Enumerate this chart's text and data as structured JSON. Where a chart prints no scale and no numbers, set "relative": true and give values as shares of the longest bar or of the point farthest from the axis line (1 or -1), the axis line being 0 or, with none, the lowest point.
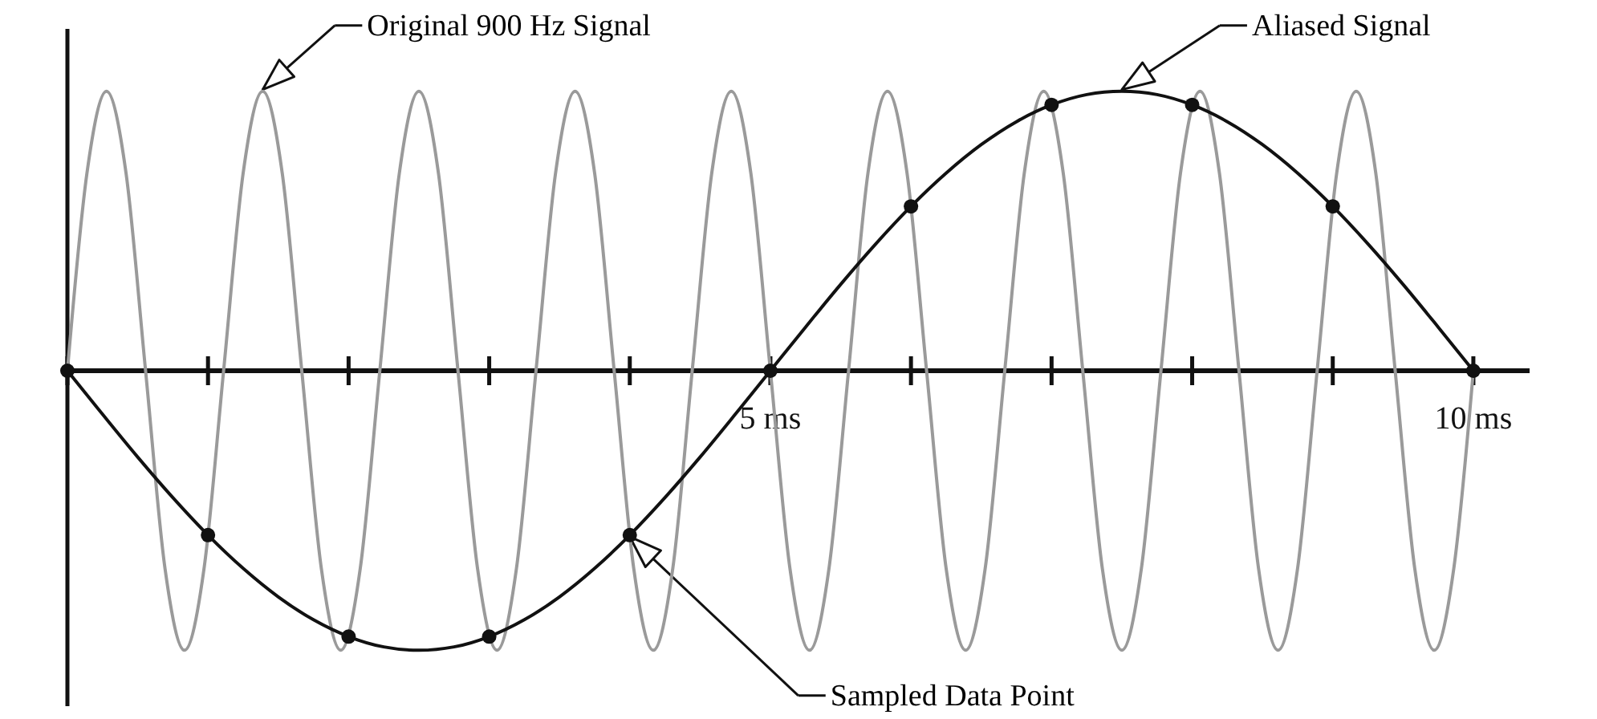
{
  "chart_data": {
    "type": "line",
    "relative": true,
    "xlim": [
      0,
      10.4
    ],
    "xticks": [
      {
        "value": 0,
        "label": null
      },
      {
        "value": 1,
        "label": null
      },
      {
        "value": 2,
        "label": null
      },
      {
        "value": 3,
        "label": null
      },
      {
        "value": 4,
        "label": null
      },
      {
        "value": 5,
        "label": "5 ms"
      },
      {
        "value": 6,
        "label": null
      },
      {
        "value": 7,
        "label": null
      },
      {
        "value": 8,
        "label": null
      },
      {
        "value": 9,
        "label": null
      },
      {
        "value": 10,
        "label": "10 ms"
      }
    ],
    "tick_labels": "x",
    "series": [
      {
        "color": "#9a9a9a",
        "x": [
          0,
          0.139,
          0.278,
          0.417,
          0.556,
          0.694,
          0.833,
          0.972,
          1.111,
          1.25,
          1.389,
          1.528,
          1.667,
          1.806,
          1.944,
          2.083,
          2.222,
          2.361,
          2.5,
          2.639,
          2.778,
          2.917,
          3.056,
          3.194,
          3.333,
          3.472,
          3.611,
          3.75,
          3.889,
          4.028,
          4.167,
          4.306,
          4.444,
          4.583,
          4.722,
          4.861,
          5,
          5.139,
          5.278,
          5.417,
          5.556,
          5.694,
          5.833,
          5.972,
          6.111,
          6.25,
          6.389,
          6.528,
          6.667,
          6.806,
          6.944,
          7.083,
          7.222,
          7.361,
          7.5,
          7.639,
          7.778,
          7.917,
          8.056,
          8.194,
          8.333,
          8.472,
          8.611,
          8.75,
          8.889,
          9.028,
          9.167,
          9.306,
          9.444,
          9.583,
          9.722,
          9.861,
          10
        ],
        "values": [
          0,
          0.707,
          1,
          0.707,
          0,
          -0.707,
          -1,
          -0.707,
          0,
          0.707,
          1,
          0.707,
          0,
          -0.707,
          -1,
          -0.707,
          0,
          0.707,
          1,
          0.707,
          0,
          -0.707,
          -1,
          -0.707,
          0,
          0.707,
          1,
          0.707,
          0,
          -0.707,
          -1,
          -0.707,
          0,
          0.707,
          1,
          0.707,
          0,
          -0.707,
          -1,
          -0.707,
          0,
          0.707,
          1,
          0.707,
          0,
          -0.707,
          -1,
          -0.707,
          0,
          0.707,
          1,
          0.707,
          0,
          -0.707,
          -1,
          -0.707,
          0,
          0.707,
          1,
          0.707,
          0,
          -0.707,
          -1,
          -0.707,
          0,
          0.707,
          1,
          0.707,
          0,
          -0.707,
          -1,
          -0.707,
          0
        ]
      },
      {
        "color": "#111111",
        "x": [
          0,
          0.25,
          0.5,
          0.75,
          1,
          1.25,
          1.5,
          1.75,
          2,
          2.25,
          2.5,
          2.75,
          3,
          3.25,
          3.5,
          3.75,
          4,
          4.25,
          4.5,
          4.75,
          5,
          5.25,
          5.5,
          5.75,
          6,
          6.25,
          6.5,
          6.75,
          7,
          7.25,
          7.5,
          7.75,
          8,
          8.25,
          8.5,
          8.75,
          9,
          9.25,
          9.5,
          9.75,
          10
        ],
        "values": [
          0,
          -0.156,
          -0.309,
          -0.454,
          -0.588,
          -0.707,
          -0.809,
          -0.891,
          -0.951,
          -0.988,
          -1,
          -0.988,
          -0.951,
          -0.891,
          -0.809,
          -0.707,
          -0.588,
          -0.454,
          -0.309,
          -0.156,
          0,
          0.156,
          0.309,
          0.454,
          0.588,
          0.707,
          0.809,
          0.891,
          0.951,
          0.988,
          1,
          0.988,
          0.951,
          0.891,
          0.809,
          0.707,
          0.588,
          0.454,
          0.309,
          0.156,
          0
        ]
      },
      {
        "type": "scatter",
        "color": "#111111",
        "marker": "circle",
        "x": [
          0,
          1,
          2,
          3,
          4,
          5,
          6,
          7,
          8,
          9,
          10
        ],
        "values": [
          0,
          -0.588,
          -0.951,
          -0.951,
          -0.588,
          0,
          0.588,
          0.951,
          0.951,
          0.588,
          0
        ]
      }
    ],
    "annotations": [
      {
        "text": "Original 900 Hz Signal",
        "x": 1.389,
        "y": 1
      },
      {
        "text": "Aliased Signal",
        "x": 7.5,
        "y": 1
      },
      {
        "text": "Sampled Data Point",
        "x": 4,
        "y": -0.588
      }
    ]
  }
}
